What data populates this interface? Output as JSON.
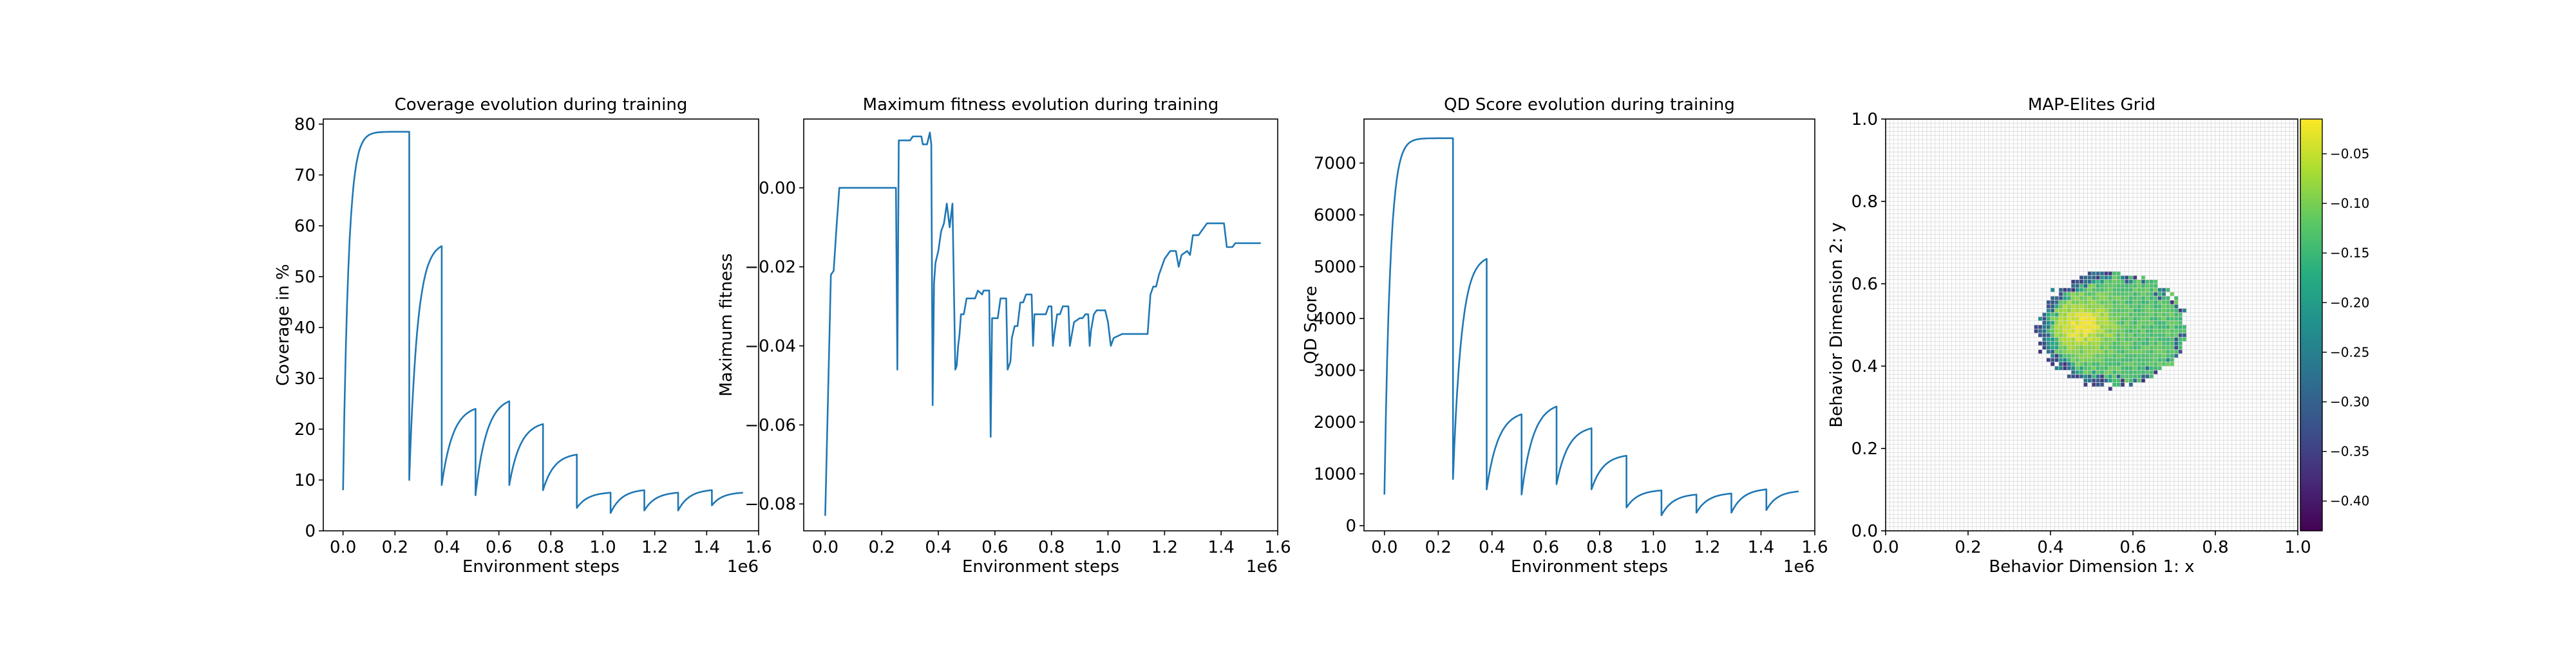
{
  "chart_data": [
    {
      "type": "line",
      "title": "Coverage evolution during training",
      "xlabel": "Environment steps",
      "ylabel": "Coverage in %",
      "x_offset_label": "1e6",
      "xlim": [
        -0.076,
        1.6
      ],
      "ylim": [
        0,
        81
      ],
      "xticks": [
        0.0,
        0.2,
        0.4,
        0.6,
        0.8,
        1.0,
        1.2,
        1.4,
        1.6
      ],
      "xtick_labels": [
        "0.0",
        "0.2",
        "0.4",
        "0.6",
        "0.8",
        "1.0",
        "1.2",
        "1.4",
        "1.6"
      ],
      "yticks": [
        0,
        10,
        20,
        30,
        40,
        50,
        60,
        70,
        80
      ],
      "ytick_labels": [
        "0",
        "10",
        "20",
        "30",
        "40",
        "50",
        "60",
        "70",
        "80"
      ],
      "color": "#1f77b4",
      "resets": [
        {
          "x0": 0.0,
          "x1": 0.255,
          "y0": 8.0,
          "y1": 78.5,
          "k": 12
        },
        {
          "x0": 0.255,
          "x1": 0.38,
          "y0": 10.0,
          "y1": 56.0,
          "k": 4
        },
        {
          "x0": 0.38,
          "x1": 0.51,
          "y0": 9.0,
          "y1": 24.0,
          "k": 3
        },
        {
          "x0": 0.51,
          "x1": 0.64,
          "y0": 7.0,
          "y1": 25.5,
          "k": 3
        },
        {
          "x0": 0.64,
          "x1": 0.77,
          "y0": 9.0,
          "y1": 21.0,
          "k": 3
        },
        {
          "x0": 0.77,
          "x1": 0.9,
          "y0": 8.0,
          "y1": 15.0,
          "k": 3
        },
        {
          "x0": 0.9,
          "x1": 1.03,
          "y0": 4.5,
          "y1": 7.5,
          "k": 3
        },
        {
          "x0": 1.03,
          "x1": 1.16,
          "y0": 3.5,
          "y1": 8.0,
          "k": 3
        },
        {
          "x0": 1.16,
          "x1": 1.29,
          "y0": 4.0,
          "y1": 7.5,
          "k": 3
        },
        {
          "x0": 1.29,
          "x1": 1.42,
          "y0": 4.0,
          "y1": 8.0,
          "k": 3
        },
        {
          "x0": 1.42,
          "x1": 1.54,
          "y0": 5.0,
          "y1": 7.5,
          "k": 3
        }
      ]
    },
    {
      "type": "line",
      "title": "Maximum fitness evolution during training",
      "xlabel": "Environment steps",
      "ylabel": "Maximum fitness",
      "x_offset_label": "1e6",
      "xlim": [
        -0.076,
        1.6
      ],
      "ylim": [
        -0.0868,
        0.0174
      ],
      "xticks": [
        0.0,
        0.2,
        0.4,
        0.6,
        0.8,
        1.0,
        1.2,
        1.4,
        1.6
      ],
      "xtick_labels": [
        "0.0",
        "0.2",
        "0.4",
        "0.6",
        "0.8",
        "1.0",
        "1.2",
        "1.4",
        "1.6"
      ],
      "yticks": [
        -0.08,
        -0.06,
        -0.04,
        -0.02,
        0.0
      ],
      "ytick_labels": [
        "−0.08",
        "−0.06",
        "−0.04",
        "−0.02",
        "0.00"
      ],
      "color": "#1f77b4",
      "points": [
        [
          0.0,
          -0.083
        ],
        [
          0.02,
          -0.022
        ],
        [
          0.03,
          -0.021
        ],
        [
          0.04,
          -0.01
        ],
        [
          0.05,
          0.0
        ],
        [
          0.25,
          0.0
        ],
        [
          0.255,
          -0.046
        ],
        [
          0.26,
          0.012
        ],
        [
          0.3,
          0.012
        ],
        [
          0.31,
          0.013
        ],
        [
          0.34,
          0.013
        ],
        [
          0.345,
          0.011
        ],
        [
          0.36,
          0.011
        ],
        [
          0.37,
          0.014
        ],
        [
          0.375,
          0.011
        ],
        [
          0.38,
          -0.055
        ],
        [
          0.385,
          -0.024
        ],
        [
          0.39,
          -0.019
        ],
        [
          0.4,
          -0.016
        ],
        [
          0.41,
          -0.011
        ],
        [
          0.42,
          -0.009
        ],
        [
          0.43,
          -0.004
        ],
        [
          0.44,
          -0.01
        ],
        [
          0.45,
          -0.004
        ],
        [
          0.46,
          -0.046
        ],
        [
          0.465,
          -0.045
        ],
        [
          0.47,
          -0.04
        ],
        [
          0.475,
          -0.037
        ],
        [
          0.48,
          -0.032
        ],
        [
          0.49,
          -0.032
        ],
        [
          0.5,
          -0.028
        ],
        [
          0.53,
          -0.028
        ],
        [
          0.54,
          -0.026
        ],
        [
          0.555,
          -0.027
        ],
        [
          0.56,
          -0.026
        ],
        [
          0.58,
          -0.026
        ],
        [
          0.585,
          -0.063
        ],
        [
          0.59,
          -0.033
        ],
        [
          0.61,
          -0.033
        ],
        [
          0.62,
          -0.028
        ],
        [
          0.64,
          -0.028
        ],
        [
          0.645,
          -0.046
        ],
        [
          0.65,
          -0.045
        ],
        [
          0.655,
          -0.044
        ],
        [
          0.66,
          -0.038
        ],
        [
          0.67,
          -0.035
        ],
        [
          0.68,
          -0.035
        ],
        [
          0.69,
          -0.029
        ],
        [
          0.7,
          -0.029
        ],
        [
          0.71,
          -0.027
        ],
        [
          0.73,
          -0.027
        ],
        [
          0.735,
          -0.04
        ],
        [
          0.74,
          -0.032
        ],
        [
          0.78,
          -0.032
        ],
        [
          0.79,
          -0.03
        ],
        [
          0.8,
          -0.03
        ],
        [
          0.805,
          -0.04
        ],
        [
          0.81,
          -0.037
        ],
        [
          0.82,
          -0.032
        ],
        [
          0.83,
          -0.032
        ],
        [
          0.84,
          -0.03
        ],
        [
          0.86,
          -0.03
        ],
        [
          0.865,
          -0.04
        ],
        [
          0.87,
          -0.038
        ],
        [
          0.88,
          -0.034
        ],
        [
          0.9,
          -0.033
        ],
        [
          0.91,
          -0.033
        ],
        [
          0.92,
          -0.032
        ],
        [
          0.93,
          -0.032
        ],
        [
          0.935,
          -0.04
        ],
        [
          0.94,
          -0.036
        ],
        [
          0.95,
          -0.032
        ],
        [
          0.96,
          -0.031
        ],
        [
          0.99,
          -0.031
        ],
        [
          1.0,
          -0.034
        ],
        [
          1.01,
          -0.04
        ],
        [
          1.02,
          -0.038
        ],
        [
          1.05,
          -0.037
        ],
        [
          1.14,
          -0.037
        ],
        [
          1.15,
          -0.027
        ],
        [
          1.16,
          -0.025
        ],
        [
          1.17,
          -0.025
        ],
        [
          1.18,
          -0.022
        ],
        [
          1.2,
          -0.018
        ],
        [
          1.22,
          -0.016
        ],
        [
          1.24,
          -0.016
        ],
        [
          1.25,
          -0.02
        ],
        [
          1.26,
          -0.017
        ],
        [
          1.28,
          -0.016
        ],
        [
          1.29,
          -0.017
        ],
        [
          1.3,
          -0.012
        ],
        [
          1.32,
          -0.012
        ],
        [
          1.33,
          -0.011
        ],
        [
          1.35,
          -0.009
        ],
        [
          1.41,
          -0.009
        ],
        [
          1.42,
          -0.015
        ],
        [
          1.44,
          -0.015
        ],
        [
          1.45,
          -0.014
        ],
        [
          1.54,
          -0.014
        ]
      ]
    },
    {
      "type": "line",
      "title": "QD Score evolution during training",
      "xlabel": "Environment steps",
      "ylabel": "QD Score",
      "x_offset_label": "1e6",
      "xlim": [
        -0.076,
        1.6
      ],
      "ylim": [
        -100,
        7850
      ],
      "xticks": [
        0.0,
        0.2,
        0.4,
        0.6,
        0.8,
        1.0,
        1.2,
        1.4,
        1.6
      ],
      "xtick_labels": [
        "0.0",
        "0.2",
        "0.4",
        "0.6",
        "0.8",
        "1.0",
        "1.2",
        "1.4",
        "1.6"
      ],
      "yticks": [
        0,
        1000,
        2000,
        3000,
        4000,
        5000,
        6000,
        7000
      ],
      "ytick_labels": [
        "0",
        "1000",
        "2000",
        "3000",
        "4000",
        "5000",
        "6000",
        "7000"
      ],
      "color": "#1f77b4",
      "resets": [
        {
          "x0": 0.0,
          "x1": 0.255,
          "y0": 600,
          "y1": 7480,
          "k": 12
        },
        {
          "x0": 0.255,
          "x1": 0.38,
          "y0": 900,
          "y1": 5150,
          "k": 4
        },
        {
          "x0": 0.38,
          "x1": 0.51,
          "y0": 700,
          "y1": 2150,
          "k": 3
        },
        {
          "x0": 0.51,
          "x1": 0.64,
          "y0": 600,
          "y1": 2300,
          "k": 3
        },
        {
          "x0": 0.64,
          "x1": 0.77,
          "y0": 800,
          "y1": 1880,
          "k": 3
        },
        {
          "x0": 0.77,
          "x1": 0.9,
          "y0": 700,
          "y1": 1350,
          "k": 3
        },
        {
          "x0": 0.9,
          "x1": 1.03,
          "y0": 350,
          "y1": 680,
          "k": 3
        },
        {
          "x0": 1.03,
          "x1": 1.16,
          "y0": 200,
          "y1": 600,
          "k": 3
        },
        {
          "x0": 1.16,
          "x1": 1.29,
          "y0": 250,
          "y1": 620,
          "k": 3
        },
        {
          "x0": 1.29,
          "x1": 1.42,
          "y0": 250,
          "y1": 700,
          "k": 3
        },
        {
          "x0": 1.42,
          "x1": 1.54,
          "y0": 300,
          "y1": 660,
          "k": 3
        }
      ]
    },
    {
      "type": "heatmap",
      "title": "MAP-Elites Grid",
      "xlabel": "Behavior Dimension 1: x",
      "ylabel": "Behavior Dimension 2: y",
      "xlim": [
        0.0,
        1.0
      ],
      "ylim": [
        0.0,
        1.0
      ],
      "grid_cells": 100,
      "grid": true,
      "xticks": [
        0.0,
        0.2,
        0.4,
        0.6,
        0.8,
        1.0
      ],
      "xtick_labels": [
        "0.0",
        "0.2",
        "0.4",
        "0.6",
        "0.8",
        "1.0"
      ],
      "yticks": [
        0.0,
        0.2,
        0.4,
        0.6,
        0.8,
        1.0
      ],
      "ytick_labels": [
        "0.0",
        "0.2",
        "0.4",
        "0.6",
        "0.8",
        "1.0"
      ],
      "colormap": "viridis",
      "colorbar_range": [
        -0.43,
        -0.015
      ],
      "colorbar_ticks": [
        -0.4,
        -0.35,
        -0.3,
        -0.25,
        -0.2,
        -0.15,
        -0.1,
        -0.05
      ],
      "colorbar_tick_labels": [
        "−0.40",
        "−0.35",
        "−0.30",
        "−0.25",
        "−0.20",
        "−0.15",
        "−0.10",
        "−0.05"
      ],
      "filled_region": {
        "center": [
          0.55,
          0.49
        ],
        "x_halfwidth": 0.18,
        "y_halfheight": 0.14,
        "peak": [
          0.475,
          0.5
        ],
        "peak_value": -0.02,
        "typical_value": -0.13,
        "low_edge_value": -0.38
      }
    }
  ]
}
